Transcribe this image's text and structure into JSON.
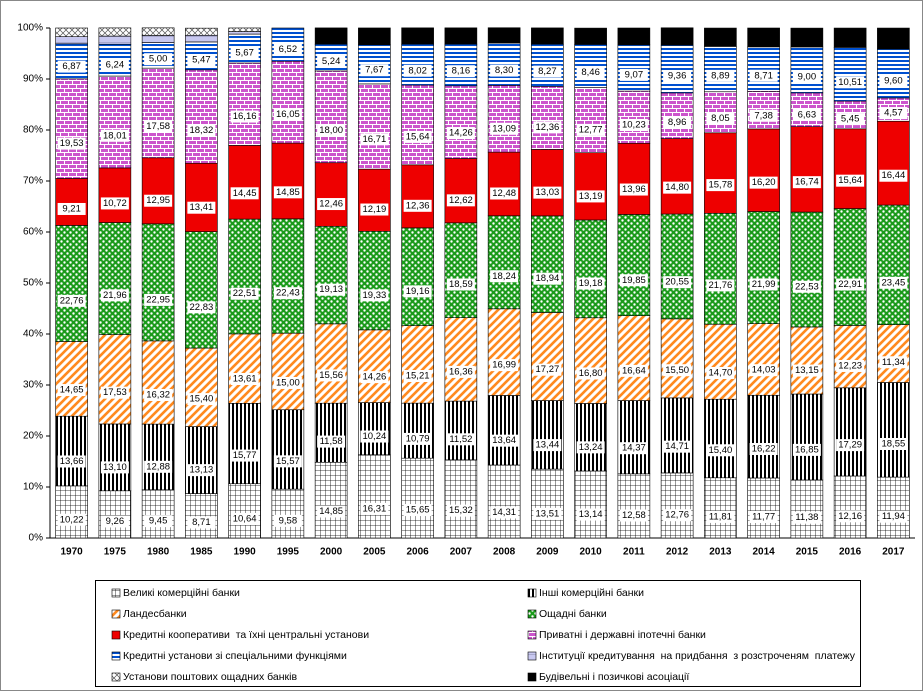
{
  "chart_data": {
    "type": "stacked_bar",
    "categories": [
      "1970",
      "1975",
      "1980",
      "1985",
      "1990",
      "1995",
      "2000",
      "2005",
      "2006",
      "2007",
      "2008",
      "2009",
      "2010",
      "2011",
      "2012",
      "2013",
      "2014",
      "2015",
      "2016",
      "2017"
    ],
    "ylim": [
      0,
      100
    ],
    "yticks": [
      {
        "value": 0,
        "label": "0%"
      },
      {
        "value": 10,
        "label": "10%"
      },
      {
        "value": 20,
        "label": "20%"
      },
      {
        "value": 30,
        "label": "30%"
      },
      {
        "value": 40,
        "label": "40%"
      },
      {
        "value": 50,
        "label": "50%"
      },
      {
        "value": 60,
        "label": "60%"
      },
      {
        "value": 70,
        "label": "70%"
      },
      {
        "value": 80,
        "label": "80%"
      },
      {
        "value": 90,
        "label": "90%"
      },
      {
        "value": 100,
        "label": "100%"
      }
    ],
    "series": [
      {
        "name": "Великі комерційні банки",
        "color": "#000000",
        "values": [
          10.22,
          9.26,
          9.45,
          8.71,
          10.64,
          9.58,
          14.85,
          16.31,
          15.65,
          15.32,
          14.31,
          13.51,
          13.14,
          12.58,
          12.76,
          11.81,
          11.77,
          11.38,
          12.16,
          11.94
        ],
        "value_labels": [
          "10,22",
          "9,26",
          "9,45",
          "8,71",
          "10,64",
          "9,58",
          "14,85",
          "16,31",
          "15,65",
          "15,32",
          "14,31",
          "13,51",
          "13,14",
          "12,58",
          "12,76",
          "11,81",
          "11,77",
          "11,38",
          "12,16",
          "11,94"
        ]
      },
      {
        "name": "Інші комерційні банки",
        "color": "#000000",
        "values": [
          13.66,
          13.1,
          12.88,
          13.13,
          15.77,
          15.57,
          11.58,
          10.24,
          10.79,
          11.52,
          13.64,
          13.44,
          13.24,
          14.37,
          14.71,
          15.4,
          16.22,
          16.85,
          17.29,
          18.55
        ],
        "value_labels": [
          "13,66",
          "13,10",
          "12,88",
          "13,13",
          "15,77",
          "15,57",
          "11,58",
          "10,24",
          "10,79",
          "11,52",
          "13,64",
          "13,44",
          "13,24",
          "14,37",
          "14,71",
          "15,40",
          "16,22",
          "16,85",
          "17,29",
          "18,55"
        ]
      },
      {
        "name": "Ландесбанки",
        "color": "#ff8a1f",
        "values": [
          14.65,
          17.53,
          16.32,
          15.4,
          13.61,
          15.0,
          15.56,
          14.26,
          15.21,
          16.36,
          16.99,
          17.27,
          16.8,
          16.64,
          15.5,
          14.7,
          14.03,
          13.15,
          12.23,
          11.34
        ],
        "value_labels": [
          "14,65",
          "17,53",
          "16,32",
          "15,40",
          "13,61",
          "15,00",
          "15,56",
          "14,26",
          "15,21",
          "16,36",
          "16,99",
          "17,27",
          "16,80",
          "16,64",
          "15,50",
          "14,70",
          "14,03",
          "13,15",
          "12,23",
          "11,34"
        ]
      },
      {
        "name": "Ощадні банки",
        "color": "#1a9a1a",
        "values": [
          22.76,
          21.96,
          22.95,
          22.83,
          22.51,
          22.43,
          19.13,
          19.33,
          19.16,
          18.59,
          18.24,
          18.94,
          19.18,
          19.85,
          20.55,
          21.76,
          21.99,
          22.53,
          22.91,
          23.45
        ],
        "value_labels": [
          "22,76",
          "21,96",
          "22,95",
          "22,83",
          "22,51",
          "22,43",
          "19,13",
          "19,33",
          "19,16",
          "18,59",
          "18,24",
          "18,94",
          "19,18",
          "19,85",
          "20,55",
          "21,76",
          "21,99",
          "22,53",
          "22,91",
          "23,45"
        ]
      },
      {
        "name": "Кредитні кооперативи  та їхні центральні установи",
        "color": "#ee0000",
        "values": [
          9.21,
          10.72,
          12.95,
          13.41,
          14.45,
          14.85,
          12.46,
          12.19,
          12.36,
          12.62,
          12.48,
          13.03,
          13.19,
          13.96,
          14.8,
          15.78,
          16.2,
          16.74,
          15.64,
          16.44
        ],
        "value_labels": [
          "9,21",
          "10,72",
          "12,95",
          "13,41",
          "14,45",
          "14,85",
          "12,46",
          "12,19",
          "12,36",
          "12,62",
          "12,48",
          "13,03",
          "13,19",
          "13,96",
          "14,80",
          "15,78",
          "16,20",
          "16,74",
          "15,64",
          "16,44"
        ]
      },
      {
        "name": "Приватні і державні іпотечні банки",
        "color": "#cc55cc",
        "values": [
          19.53,
          18.01,
          17.58,
          18.32,
          16.16,
          16.05,
          18.0,
          16.71,
          15.64,
          14.26,
          13.09,
          12.36,
          12.77,
          10.23,
          8.96,
          8.05,
          7.38,
          6.63,
          5.45,
          4.57
        ],
        "value_labels": [
          "19,53",
          "18,01",
          "17,58",
          "18,32",
          "16,16",
          "16,05",
          "18,00",
          "16,71",
          "15,64",
          "14,26",
          "13,09",
          "12,36",
          "12,77",
          "10,23",
          "8,96",
          "8,05",
          "7,38",
          "6,63",
          "5,45",
          "4,57"
        ]
      },
      {
        "name": "Кредитні установи зі спеціальними функціями",
        "color": "#0050d0",
        "values": [
          6.87,
          6.24,
          5.0,
          5.47,
          5.67,
          6.52,
          5.24,
          7.67,
          8.02,
          8.16,
          8.3,
          8.27,
          8.46,
          9.07,
          9.36,
          8.89,
          8.71,
          9.0,
          10.51,
          9.6
        ],
        "value_labels": [
          "6,87",
          "6,24",
          "5,00",
          "5,47",
          "5,67",
          "6,52",
          "5,24",
          "7,67",
          "8,02",
          "8,16",
          "8,30",
          "8,27",
          "8,46",
          "9,07",
          "9,36",
          "8,89",
          "8,71",
          "9,00",
          "10,51",
          "9,60"
        ]
      },
      {
        "name": "Інституції кредитування  на придбання  з розстроченям  платежу",
        "color": "#c8c8f0",
        "values": [
          1.4,
          1.6,
          1.4,
          1.3,
          0.5,
          null,
          null,
          null,
          null,
          null,
          null,
          null,
          null,
          null,
          null,
          null,
          null,
          null,
          null,
          null
        ]
      },
      {
        "name": "Установи поштових ощадних банків",
        "color": "#555555",
        "values": [
          1.7,
          1.6,
          1.5,
          1.4,
          0.7,
          null,
          null,
          null,
          null,
          null,
          null,
          null,
          null,
          null,
          null,
          null,
          null,
          null,
          null,
          null
        ]
      },
      {
        "name": "Будівельні і позичкові асоціації",
        "color": "#000000",
        "values": [
          null,
          null,
          null,
          null,
          null,
          null,
          3.2,
          3.3,
          3.2,
          3.2,
          3.0,
          3.2,
          3.2,
          3.3,
          3.4,
          3.6,
          3.7,
          3.7,
          3.8,
          4.1
        ]
      }
    ]
  }
}
